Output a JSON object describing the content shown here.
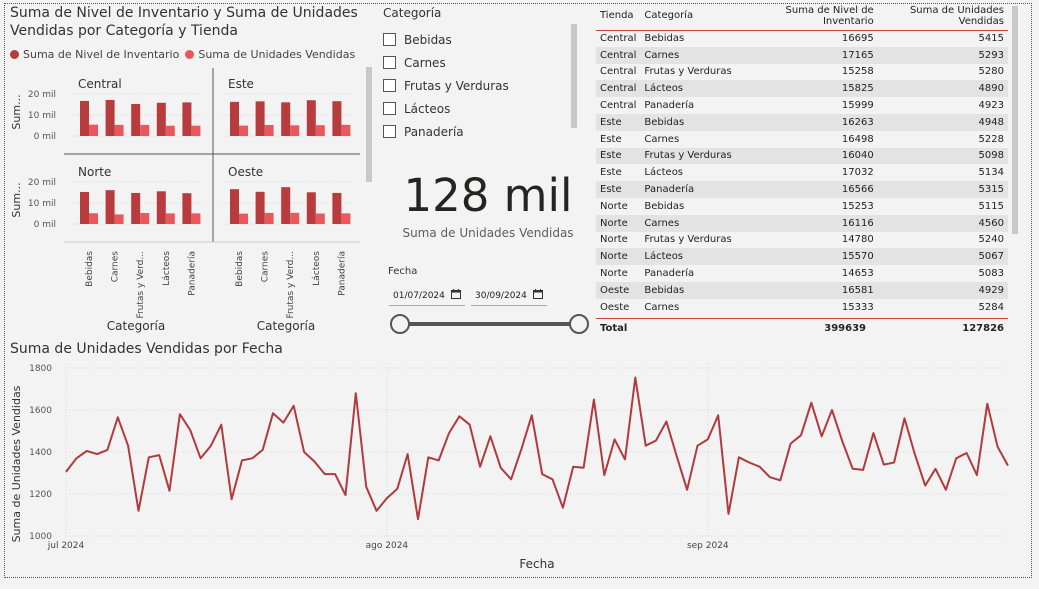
{
  "small_multiples": {
    "title_line1": "Suma de Nivel de Inventario y Suma de Unidades",
    "title_line2": "Vendidas por Categoría y Tienda",
    "legend": [
      {
        "label": "Suma de Nivel de Inventario",
        "color": "#b83b3e"
      },
      {
        "label": "Suma de Unidades Vendidas",
        "color": "#e8585c"
      }
    ],
    "y_axis_label": "Sum...",
    "x_axis_label": "Categoría",
    "y_ticks": [
      "20 mil",
      "10 mil",
      "0 mil"
    ],
    "panels": [
      "Central",
      "Este",
      "Norte",
      "Oeste"
    ]
  },
  "slicer": {
    "title": "Categoría",
    "items": [
      "Bebidas",
      "Carnes",
      "Frutas y Verduras",
      "Lácteos",
      "Panadería"
    ]
  },
  "card": {
    "value": "128 mil",
    "label": "Suma de Unidades Vendidas"
  },
  "date_slicer": {
    "title": "Fecha",
    "start": "01/07/2024",
    "end": "30/09/2024"
  },
  "matrix": {
    "headers": [
      "Tienda",
      "Categoría",
      "Suma de Nivel de Inventario",
      "Suma de Unidades Vendidas"
    ],
    "rows": [
      [
        "Central",
        "Bebidas",
        "16695",
        "5415"
      ],
      [
        "Central",
        "Carnes",
        "17165",
        "5293"
      ],
      [
        "Central",
        "Frutas y Verduras",
        "15258",
        "5280"
      ],
      [
        "Central",
        "Lácteos",
        "15825",
        "4890"
      ],
      [
        "Central",
        "Panadería",
        "15999",
        "4923"
      ],
      [
        "Este",
        "Bebidas",
        "16263",
        "4948"
      ],
      [
        "Este",
        "Carnes",
        "16498",
        "5228"
      ],
      [
        "Este",
        "Frutas y Verduras",
        "16040",
        "5098"
      ],
      [
        "Este",
        "Lácteos",
        "17032",
        "5134"
      ],
      [
        "Este",
        "Panadería",
        "16566",
        "5315"
      ],
      [
        "Norte",
        "Bebidas",
        "15253",
        "5115"
      ],
      [
        "Norte",
        "Carnes",
        "16116",
        "4560"
      ],
      [
        "Norte",
        "Frutas y Verduras",
        "14780",
        "5240"
      ],
      [
        "Norte",
        "Lácteos",
        "15570",
        "5067"
      ],
      [
        "Norte",
        "Panadería",
        "14653",
        "5083"
      ],
      [
        "Oeste",
        "Bebidas",
        "16581",
        "4929"
      ],
      [
        "Oeste",
        "Carnes",
        "15333",
        "5284"
      ]
    ],
    "total": [
      "Total",
      "",
      "399639",
      "127826"
    ]
  },
  "chart_data": [
    {
      "type": "bar",
      "categories": [
        "Bebidas",
        "Carnes",
        "Frutas y Verduras",
        "Lácteos",
        "Panadería"
      ],
      "x_tick_labels": [
        "Bebidas",
        "Carnes",
        "Frutas y Verd...",
        "Lácteos",
        "Panadería"
      ],
      "ylim": [
        0,
        25000
      ],
      "panels": [
        {
          "name": "Central",
          "series": [
            {
              "name": "Suma de Nivel de Inventario",
              "values": [
                16695,
                17165,
                15258,
                15825,
                15999
              ]
            },
            {
              "name": "Suma de Unidades Vendidas",
              "values": [
                5415,
                5293,
                5280,
                4890,
                4923
              ]
            }
          ]
        },
        {
          "name": "Este",
          "series": [
            {
              "name": "Suma de Nivel de Inventario",
              "values": [
                16263,
                16498,
                16040,
                17032,
                16566
              ]
            },
            {
              "name": "Suma de Unidades Vendidas",
              "values": [
                4948,
                5228,
                5098,
                5134,
                5315
              ]
            }
          ]
        },
        {
          "name": "Norte",
          "series": [
            {
              "name": "Suma de Nivel de Inventario",
              "values": [
                15253,
                16116,
                14780,
                15570,
                14653
              ]
            },
            {
              "name": "Suma de Unidades Vendidas",
              "values": [
                5115,
                4560,
                5240,
                5067,
                5083
              ]
            }
          ]
        },
        {
          "name": "Oeste",
          "series": [
            {
              "name": "Suma de Nivel de Inventario",
              "values": [
                16581,
                15333,
                17546,
                15100,
                14800
              ]
            },
            {
              "name": "Suma de Unidades Vendidas",
              "values": [
                4929,
                5284,
                5300,
                5000,
                5050
              ]
            }
          ]
        }
      ]
    },
    {
      "type": "line",
      "title": "Suma de Unidades Vendidas por Fecha",
      "xlabel": "Fecha",
      "ylabel": "Suma de Unidades Vendidas",
      "y_ticks": [
        1000,
        1200,
        1400,
        1600,
        1800
      ],
      "ylim": [
        1000,
        1800
      ],
      "x_ticks": [
        {
          "label": "jul 2024",
          "date": "2024-07-01"
        },
        {
          "label": "ago 2024",
          "date": "2024-08-01"
        },
        {
          "label": "sep 2024",
          "date": "2024-09-01"
        }
      ],
      "x": [
        "2024-07-01",
        "2024-07-02",
        "2024-07-03",
        "2024-07-04",
        "2024-07-05",
        "2024-07-06",
        "2024-07-07",
        "2024-07-08",
        "2024-07-09",
        "2024-07-10",
        "2024-07-11",
        "2024-07-12",
        "2024-07-13",
        "2024-07-14",
        "2024-07-15",
        "2024-07-16",
        "2024-07-17",
        "2024-07-18",
        "2024-07-19",
        "2024-07-20",
        "2024-07-21",
        "2024-07-22",
        "2024-07-23",
        "2024-07-24",
        "2024-07-25",
        "2024-07-26",
        "2024-07-27",
        "2024-07-28",
        "2024-07-29",
        "2024-07-30",
        "2024-07-31",
        "2024-08-01",
        "2024-08-02",
        "2024-08-03",
        "2024-08-04",
        "2024-08-05",
        "2024-08-06",
        "2024-08-07",
        "2024-08-08",
        "2024-08-09",
        "2024-08-10",
        "2024-08-11",
        "2024-08-12",
        "2024-08-13",
        "2024-08-14",
        "2024-08-15",
        "2024-08-16",
        "2024-08-17",
        "2024-08-18",
        "2024-08-19",
        "2024-08-20",
        "2024-08-21",
        "2024-08-22",
        "2024-08-23",
        "2024-08-24",
        "2024-08-25",
        "2024-08-26",
        "2024-08-27",
        "2024-08-28",
        "2024-08-29",
        "2024-08-30",
        "2024-08-31",
        "2024-09-01",
        "2024-09-02",
        "2024-09-03",
        "2024-09-04",
        "2024-09-05",
        "2024-09-06",
        "2024-09-07",
        "2024-09-08",
        "2024-09-09",
        "2024-09-10",
        "2024-09-11",
        "2024-09-12",
        "2024-09-13",
        "2024-09-14",
        "2024-09-15",
        "2024-09-16",
        "2024-09-17",
        "2024-09-18",
        "2024-09-19",
        "2024-09-20",
        "2024-09-21",
        "2024-09-22",
        "2024-09-23",
        "2024-09-24",
        "2024-09-25",
        "2024-09-26",
        "2024-09-27",
        "2024-09-28",
        "2024-09-29",
        "2024-09-30"
      ],
      "values": [
        1305,
        1370,
        1405,
        1390,
        1410,
        1565,
        1430,
        1120,
        1375,
        1385,
        1215,
        1580,
        1505,
        1370,
        1430,
        1530,
        1175,
        1360,
        1370,
        1410,
        1585,
        1540,
        1620,
        1400,
        1355,
        1295,
        1295,
        1195,
        1680,
        1235,
        1120,
        1180,
        1225,
        1390,
        1080,
        1375,
        1360,
        1490,
        1570,
        1530,
        1330,
        1475,
        1325,
        1270,
        1415,
        1575,
        1295,
        1270,
        1135,
        1330,
        1325,
        1650,
        1290,
        1460,
        1365,
        1755,
        1430,
        1455,
        1545,
        1380,
        1220,
        1430,
        1460,
        1575,
        1105,
        1375,
        1350,
        1330,
        1280,
        1265,
        1440,
        1480,
        1635,
        1475,
        1600,
        1450,
        1320,
        1315,
        1490,
        1340,
        1350,
        1560,
        1390,
        1240,
        1320,
        1220,
        1370,
        1395,
        1290,
        1630,
        1425,
        1335
      ]
    }
  ],
  "colors": {
    "bar_dark": "#b83b3e",
    "bar_light": "#e8585c",
    "line": "#b13a3d"
  }
}
